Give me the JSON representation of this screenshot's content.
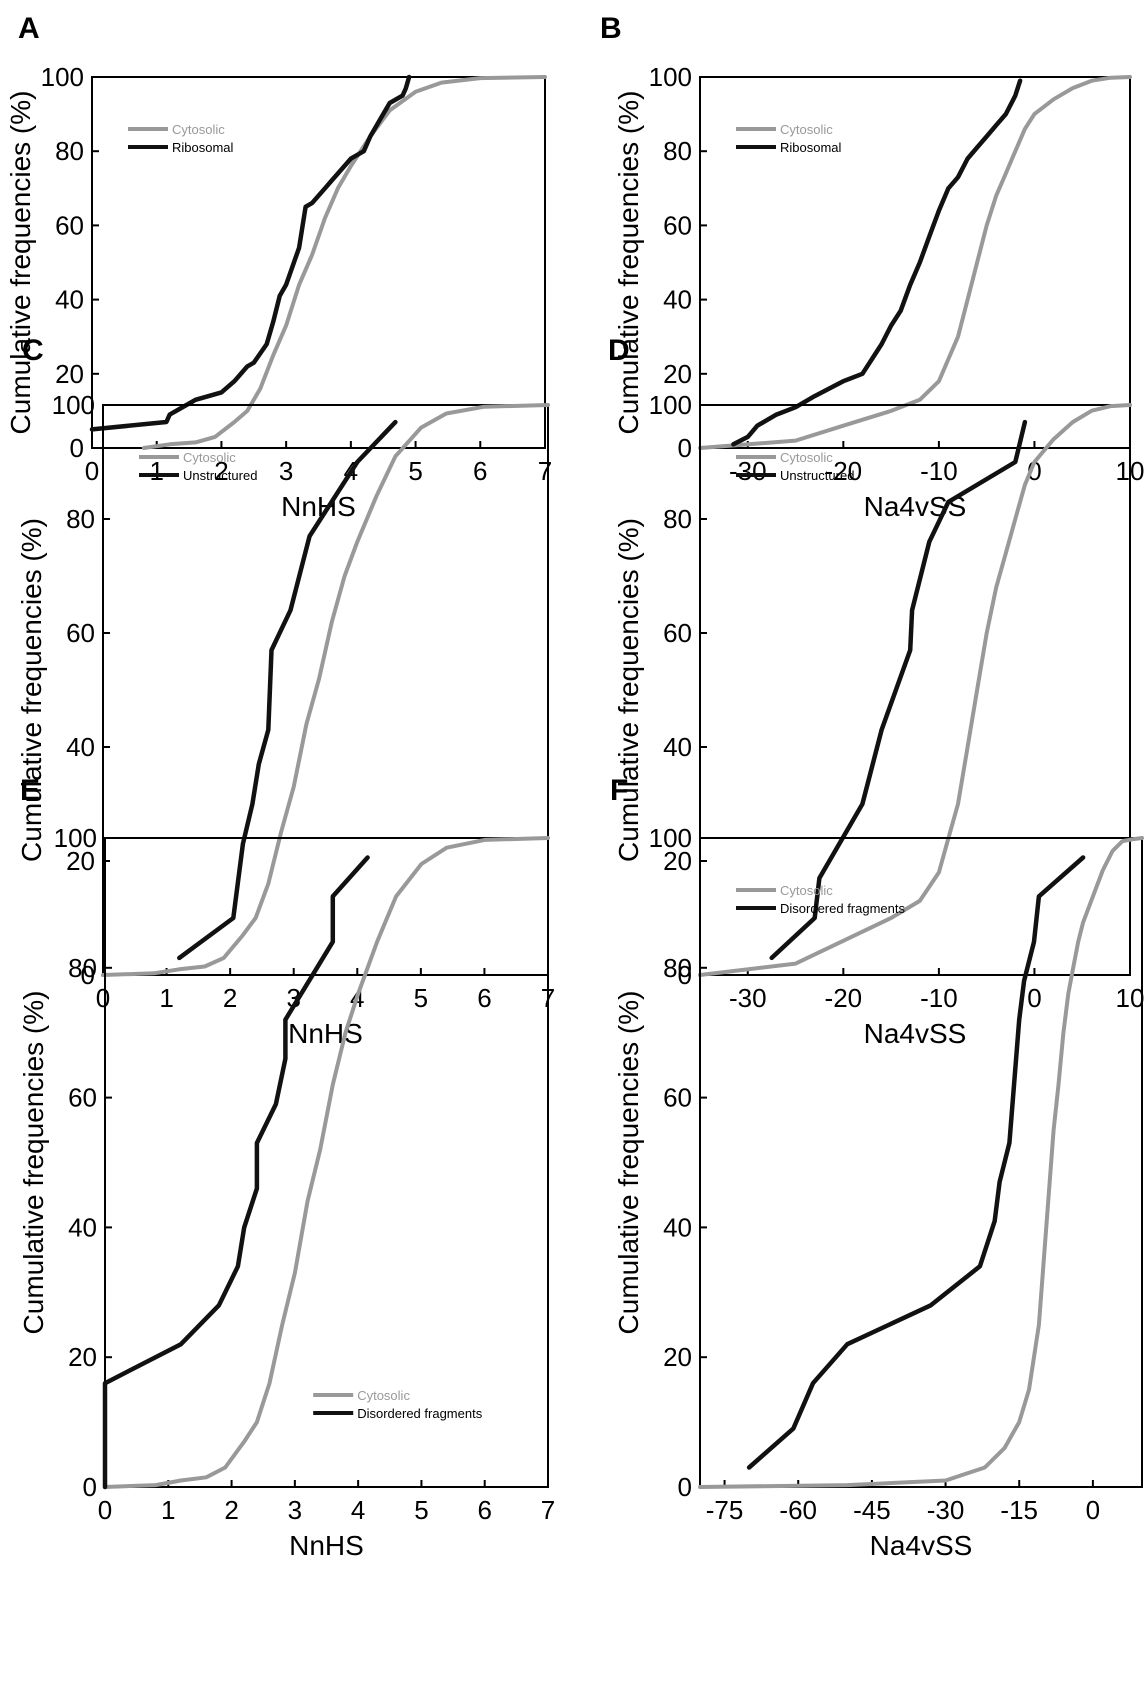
{
  "colors": {
    "cytosolic": "#999999",
    "comparison": "#111111"
  },
  "chart_data": [
    {
      "panel": "A",
      "type": "line",
      "xlabel": "NnHS",
      "ylabel": "Cumulative frequencies (%)",
      "xlim": [
        0,
        7
      ],
      "ylim": [
        0,
        100
      ],
      "xticks": [
        "0",
        "1",
        "2",
        "3",
        "4",
        "5",
        "6",
        "7"
      ],
      "yticks": [
        "0",
        "20",
        "40",
        "60",
        "80",
        "100"
      ],
      "legend_position": "top-left",
      "series": [
        {
          "name": "Cytosolic",
          "color": "#999999",
          "x": [
            0.8,
            1.2,
            1.6,
            1.9,
            2.2,
            2.4,
            2.6,
            2.8,
            3.0,
            3.2,
            3.4,
            3.6,
            3.8,
            4.0,
            4.3,
            4.6,
            5.0,
            5.4,
            6.0,
            7.0
          ],
          "y": [
            0,
            1,
            1.5,
            3,
            7,
            10,
            16,
            25,
            33,
            44,
            52,
            62,
            70,
            76,
            84,
            91,
            96,
            98.5,
            99.7,
            100
          ]
        },
        {
          "name": "Ribosomal",
          "color": "#111111",
          "x": [
            0,
            1.15,
            1.2,
            1.5,
            1.6,
            2.0,
            2.2,
            2.4,
            2.5,
            2.7,
            2.8,
            2.9,
            3.0,
            3.2,
            3.3,
            3.4,
            3.6,
            3.7,
            3.8,
            4.0,
            4.2,
            4.3,
            4.5,
            4.6,
            4.8,
            4.85,
            4.9
          ],
          "y": [
            5,
            7,
            9,
            12,
            13,
            15,
            18,
            22,
            23,
            28,
            34,
            41,
            44,
            54,
            65,
            66,
            70,
            72,
            74,
            78,
            80,
            84,
            90,
            93,
            95,
            97,
            100
          ]
        }
      ]
    },
    {
      "panel": "B",
      "type": "line",
      "xlabel": "Na4vSS",
      "ylabel": "Cumulative frequencies (%)",
      "xlim": [
        -35,
        10
      ],
      "ylim": [
        0,
        100
      ],
      "xticks": [
        "-30",
        "-20",
        "-10",
        "0",
        "10"
      ],
      "yticks": [
        "0",
        "20",
        "40",
        "60",
        "80",
        "100"
      ],
      "legend_position": "top-left",
      "series": [
        {
          "name": "Cytosolic",
          "color": "#999999",
          "x": [
            -35,
            -25,
            -20,
            -15,
            -12,
            -10,
            -9,
            -8,
            -7,
            -6,
            -5,
            -4,
            -3,
            -2,
            -1,
            0,
            2,
            4,
            6,
            8,
            10
          ],
          "y": [
            0,
            2,
            6,
            10,
            13,
            18,
            24,
            30,
            40,
            50,
            60,
            68,
            74,
            80,
            86,
            90,
            94,
            97,
            99,
            99.8,
            100
          ]
        },
        {
          "name": "Ribosomal",
          "color": "#111111",
          "x": [
            -31.5,
            -30,
            -29,
            -27,
            -25,
            -23,
            -20,
            -18,
            -17,
            -16,
            -15,
            -14,
            -13,
            -12,
            -11,
            -10,
            -9,
            -8,
            -7,
            -6,
            -5,
            -4,
            -3,
            -2,
            -1.5
          ],
          "y": [
            1,
            3,
            6,
            9,
            11,
            14,
            18,
            20,
            24,
            28,
            33,
            37,
            44,
            50,
            57,
            64,
            70,
            73,
            78,
            81,
            84,
            87,
            90,
            95,
            99
          ]
        }
      ]
    },
    {
      "panel": "C",
      "type": "line",
      "xlabel": "NnHS",
      "ylabel": "Cumulative frequencies (%)",
      "xlim": [
        0,
        7
      ],
      "ylim": [
        0,
        100
      ],
      "xticks": [
        "0",
        "1",
        "2",
        "3",
        "4",
        "5",
        "6",
        "7"
      ],
      "yticks": [
        "0",
        "20",
        "40",
        "60",
        "80",
        "100"
      ],
      "legend_position": "top-left",
      "series": [
        {
          "name": "Cytosolic",
          "color": "#999999",
          "x": [
            0,
            0.8,
            1.2,
            1.6,
            1.9,
            2.2,
            2.4,
            2.6,
            2.8,
            3.0,
            3.2,
            3.4,
            3.6,
            3.8,
            4.0,
            4.3,
            4.6,
            5.0,
            5.4,
            6.0,
            7.0
          ],
          "y": [
            0,
            0.3,
            1,
            1.5,
            3,
            7,
            10,
            16,
            25,
            33,
            44,
            52,
            62,
            70,
            76,
            84,
            91,
            96,
            98.5,
            99.7,
            100
          ]
        },
        {
          "name": "Unstructured",
          "color": "#111111",
          "x": [
            1.2,
            2.05,
            2.2,
            2.35,
            2.45,
            2.6,
            2.65,
            2.95,
            3.25,
            4.0,
            4.6
          ],
          "y": [
            3,
            10,
            23,
            30,
            37,
            43,
            57,
            64,
            77,
            90,
            97
          ]
        }
      ]
    },
    {
      "panel": "D",
      "type": "line",
      "xlabel": "Na4vSS",
      "ylabel": "Cumulative frequencies (%)",
      "xlim": [
        -35,
        10
      ],
      "ylim": [
        0,
        100
      ],
      "xticks": [
        "-30",
        "-20",
        "-10",
        "0",
        "10"
      ],
      "yticks": [
        "0",
        "20",
        "40",
        "60",
        "80",
        "100"
      ],
      "legend_position": "top-left",
      "series": [
        {
          "name": "Cytosolic",
          "color": "#999999",
          "x": [
            -35,
            -25,
            -20,
            -15,
            -12,
            -10,
            -9,
            -8,
            -7,
            -6,
            -5,
            -4,
            -3,
            -2,
            -1,
            0,
            2,
            4,
            6,
            8,
            10
          ],
          "y": [
            0,
            2,
            6,
            10,
            13,
            18,
            24,
            30,
            40,
            50,
            60,
            68,
            74,
            80,
            86,
            90,
            94,
            97,
            99,
            99.8,
            100
          ]
        },
        {
          "name": "Unstructured",
          "color": "#111111",
          "x": [
            -27.5,
            -23,
            -22.5,
            -18,
            -16,
            -13,
            -12.8,
            -11,
            -9,
            -2,
            -1
          ],
          "y": [
            3,
            10,
            17,
            30,
            43,
            57,
            64,
            76,
            83,
            90,
            97
          ]
        }
      ]
    },
    {
      "panel": "E",
      "type": "line",
      "xlabel": "NnHS",
      "ylabel": "Cumulative frequencies (%)",
      "xlim": [
        0,
        7
      ],
      "ylim": [
        0,
        100
      ],
      "xticks": [
        "0",
        "1",
        "2",
        "3",
        "4",
        "5",
        "6",
        "7"
      ],
      "yticks": [
        "0",
        "20",
        "40",
        "60",
        "80",
        "100"
      ],
      "legend_position": "bottom-right",
      "series": [
        {
          "name": "Cytosolic",
          "color": "#999999",
          "x": [
            0,
            0.8,
            1.2,
            1.6,
            1.9,
            2.2,
            2.4,
            2.6,
            2.8,
            3.0,
            3.2,
            3.4,
            3.6,
            3.8,
            4.0,
            4.3,
            4.6,
            5.0,
            5.4,
            6.0,
            7.0
          ],
          "y": [
            0,
            0.3,
            1,
            1.5,
            3,
            7,
            10,
            16,
            25,
            33,
            44,
            52,
            62,
            70,
            76,
            84,
            91,
            96,
            98.5,
            99.7,
            100
          ]
        },
        {
          "name": "Disordered fragments",
          "color": "#111111",
          "x": [
            0,
            0,
            1.2,
            1.8,
            2.1,
            2.2,
            2.4,
            2.4,
            2.7,
            2.85,
            2.85,
            3.6,
            3.6,
            4.15
          ],
          "y": [
            0,
            16,
            22,
            28,
            34,
            40,
            46,
            53,
            59,
            66,
            72,
            84,
            91,
            97
          ]
        }
      ]
    },
    {
      "panel": "F",
      "type": "line",
      "xlabel": "Na4vSS",
      "ylabel": "Cumulative frequencies (%)",
      "xlim": [
        -80,
        10
      ],
      "ylim": [
        0,
        100
      ],
      "xticks": [
        "-75",
        "-60",
        "-45",
        "-30",
        "-15",
        "0"
      ],
      "yticks": [
        "0",
        "20",
        "40",
        "60",
        "80",
        "100"
      ],
      "legend_position": "top-left",
      "series": [
        {
          "name": "Cytosolic",
          "color": "#999999",
          "x": [
            -80,
            -50,
            -30,
            -22,
            -18,
            -15,
            -13,
            -11,
            -10,
            -9,
            -8,
            -7,
            -6,
            -5,
            -4,
            -3,
            -2,
            -1,
            0,
            2,
            4,
            6,
            8,
            10
          ],
          "y": [
            0,
            0.3,
            1,
            3,
            6,
            10,
            15,
            25,
            35,
            45,
            55,
            62,
            70,
            76,
            80,
            84,
            87,
            89,
            91,
            95,
            98,
            99.5,
            99.8,
            100
          ]
        },
        {
          "name": "Disordered fragments",
          "color": "#111111",
          "x": [
            -70,
            -61,
            -57,
            -50,
            -33,
            -23,
            -20,
            -19,
            -17,
            -15,
            -14,
            -12,
            -11,
            -2
          ],
          "y": [
            3,
            9,
            16,
            22,
            28,
            34,
            41,
            47,
            53,
            72,
            78,
            84,
            91,
            97
          ]
        }
      ]
    }
  ]
}
